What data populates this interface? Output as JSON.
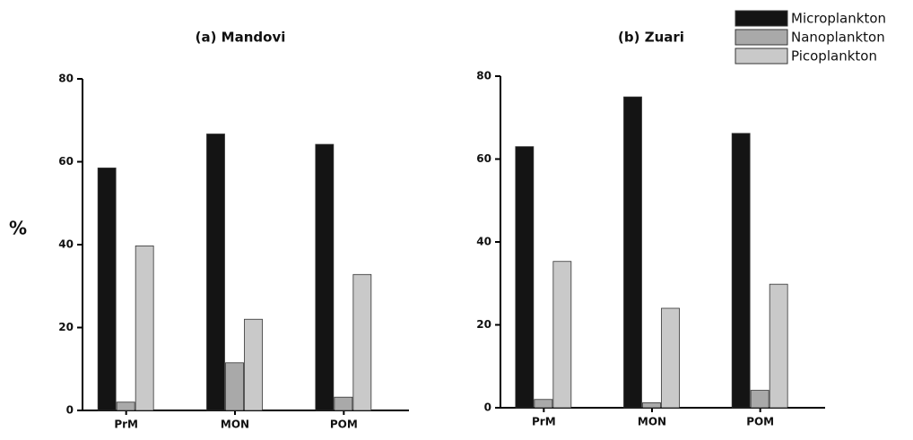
{
  "legend": [
    {
      "name": "Microplankton",
      "color": "#141414"
    },
    {
      "name": "Nanoplankton",
      "color": "#a9a9a9"
    },
    {
      "name": "Picoplankton",
      "color": "#c9c9c9"
    }
  ],
  "chart_data": [
    {
      "type": "bar",
      "title": "(a) Mandovi",
      "y_label": "%",
      "categories": [
        "PrM",
        "MON",
        "POM"
      ],
      "series": [
        {
          "values": [
            58.5,
            66.7,
            64.2
          ]
        },
        {
          "values": [
            2,
            11.5,
            3.2
          ]
        },
        {
          "values": [
            39.7,
            22,
            32.8
          ]
        }
      ],
      "ylim": [
        0,
        80
      ],
      "yticks": [
        0,
        20,
        40,
        60,
        80
      ]
    },
    {
      "type": "bar",
      "title": "(b) Zuari",
      "categories": [
        "PrM",
        "MON",
        "POM"
      ],
      "series": [
        {
          "values": [
            63,
            75,
            66.2
          ]
        },
        {
          "values": [
            2,
            1.2,
            4.2
          ]
        },
        {
          "values": [
            35.3,
            24,
            29.8
          ]
        }
      ],
      "ylim": [
        0,
        80
      ],
      "yticks": [
        0,
        20,
        40,
        60,
        80
      ]
    }
  ]
}
